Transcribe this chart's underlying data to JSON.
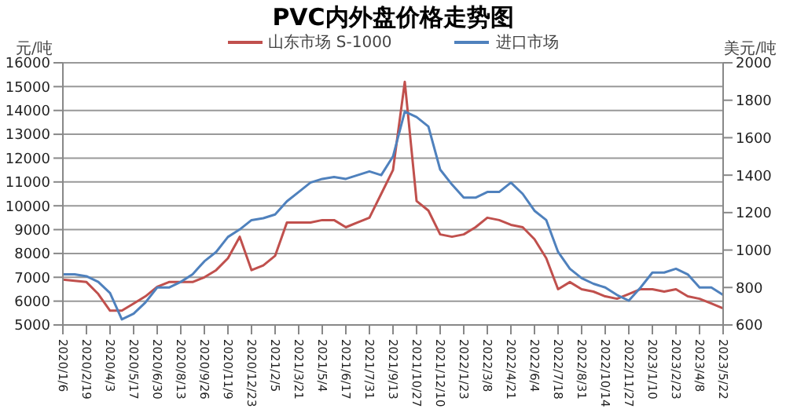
{
  "chart_data": {
    "type": "line",
    "title": "PVC内外盘价格走势图",
    "ylabel": "元/吨",
    "y2label": "美元/吨",
    "categories": [
      "2020/1/6",
      null,
      "2020/2/19",
      null,
      "2020/4/3",
      null,
      "2020/5/17",
      null,
      "2020/6/30",
      null,
      "2020/8/13",
      null,
      "2020/9/26",
      null,
      "2020/11/9",
      null,
      "2020/12/23",
      null,
      "2021/2/5",
      null,
      "2021/3/21",
      null,
      "2021/5/4",
      null,
      "2021/6/17",
      null,
      "2021/7/31",
      null,
      "2021/9/13",
      null,
      "2021/10/27",
      null,
      "2021/12/10",
      null,
      "2022/1/23",
      null,
      "2022/3/8",
      null,
      "2022/4/21",
      null,
      "2022/6/4",
      null,
      "2022/7/18",
      null,
      "2022/8/31",
      null,
      "2022/10/14",
      null,
      "2022/11/27",
      null,
      "2023/1/10",
      null,
      "2023/2/23",
      null,
      "2023/4/8",
      null,
      "2023/5/22"
    ],
    "series": [
      {
        "name": "山东市场 S-1000",
        "color": "#c0504d",
        "values": [
          6900,
          6850,
          6800,
          6300,
          5600,
          5600,
          5900,
          6200,
          6600,
          6800,
          6800,
          6800,
          7000,
          7300,
          7800,
          8700,
          7300,
          7500,
          7900,
          9300,
          9300,
          9300,
          9400,
          9400,
          9100,
          9300,
          9500,
          10500,
          11500,
          15200,
          10200,
          9800,
          8800,
          8700,
          8800,
          9100,
          9500,
          9400,
          9200,
          9100,
          8600,
          7800,
          6500,
          6800,
          6500,
          6400,
          6200,
          6100,
          6300,
          6500,
          6500,
          6400,
          6500,
          6200,
          6100,
          5900,
          5700
        ]
      },
      {
        "name": "进口市场",
        "color": "#4f81bd",
        "axis": "y2",
        "values": [
          870,
          870,
          860,
          830,
          770,
          630,
          660,
          720,
          800,
          800,
          830,
          870,
          940,
          990,
          1070,
          1110,
          1160,
          1170,
          1190,
          1260,
          1310,
          1360,
          1380,
          1390,
          1380,
          1400,
          1420,
          1400,
          1500,
          1740,
          1710,
          1660,
          1430,
          1350,
          1280,
          1280,
          1310,
          1310,
          1360,
          1300,
          1210,
          1160,
          990,
          900,
          850,
          820,
          800,
          760,
          730,
          800,
          880,
          880,
          900,
          870,
          800,
          800,
          760
        ]
      }
    ],
    "ylim": [
      5000,
      16000
    ],
    "yticks": [
      5000,
      6000,
      7000,
      8000,
      9000,
      10000,
      11000,
      12000,
      13000,
      14000,
      15000,
      16000
    ],
    "y2lim": [
      600,
      2000
    ],
    "y2ticks": [
      600,
      800,
      1000,
      1200,
      1400,
      1600,
      1800,
      2000
    ],
    "grid": "y",
    "legend": "top",
    "marker": "none",
    "line_style": "solid"
  }
}
